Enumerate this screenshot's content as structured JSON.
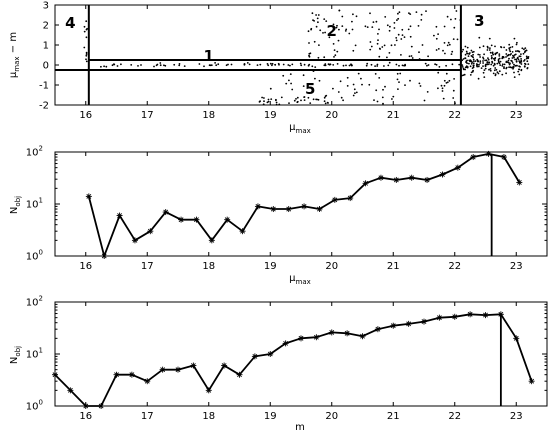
{
  "chart_data": [
    {
      "type": "scatter",
      "xlabel_base": "μ",
      "xlabel_sub": "max",
      "ylabel_parts": [
        {
          "t": "μ"
        },
        {
          "t": "max",
          "sub": true
        },
        {
          "t": " − m"
        }
      ],
      "xlim": [
        15.5,
        23.5
      ],
      "ylim": [
        -2,
        3
      ],
      "xticks": [
        16,
        17,
        18,
        19,
        20,
        21,
        22,
        23
      ],
      "yticks": [
        -2,
        -1,
        0,
        1,
        2,
        3
      ],
      "region_lines": {
        "v_at_x": [
          16.05,
          22.1
        ],
        "h_at_y": [
          0.25,
          -0.25
        ],
        "h_x_range": [
          16.05,
          22.1
        ]
      },
      "region_labels": [
        {
          "text": "1",
          "x": 18.0,
          "y": 0.45
        },
        {
          "text": "2",
          "x": 20.0,
          "y": 1.7
        },
        {
          "text": "3",
          "x": 22.4,
          "y": 2.2
        },
        {
          "text": "4",
          "x": 15.75,
          "y": 2.1
        },
        {
          "text": "5",
          "x": 19.65,
          "y": -1.2
        }
      ]
    },
    {
      "type": "line",
      "xlabel_base": "μ",
      "xlabel_sub": "max",
      "ylabel_base": "N",
      "ylabel_sub": "obj",
      "yscale": "log",
      "xlim": [
        15.5,
        23.5
      ],
      "ylim": [
        1,
        100
      ],
      "xticks": [
        16,
        17,
        18,
        19,
        20,
        21,
        22,
        23
      ],
      "yticks": [
        {
          "base": "10",
          "exp": "0",
          "value": 1
        },
        {
          "base": "10",
          "exp": "1",
          "value": 10
        },
        {
          "base": "10",
          "exp": "2",
          "value": 100
        }
      ],
      "x": [
        16.05,
        16.3,
        16.55,
        16.8,
        17.05,
        17.3,
        17.55,
        17.8,
        18.05,
        18.3,
        18.55,
        18.8,
        19.05,
        19.3,
        19.55,
        19.8,
        20.05,
        20.3,
        20.55,
        20.8,
        21.05,
        21.3,
        21.55,
        21.8,
        22.05,
        22.3,
        22.55,
        22.8,
        23.05
      ],
      "y": [
        14,
        1,
        6,
        2,
        3,
        7,
        5,
        5,
        2,
        5,
        3,
        9,
        8,
        8,
        9,
        8,
        12,
        13,
        25,
        32,
        29,
        32,
        29,
        37,
        50,
        80,
        92,
        80,
        26
      ],
      "cutoff_x": 22.6
    },
    {
      "type": "line",
      "xlabel": "m",
      "ylabel_base": "N",
      "ylabel_sub": "obj",
      "yscale": "log",
      "xlim": [
        15.5,
        23.5
      ],
      "ylim": [
        1,
        100
      ],
      "xticks": [
        16,
        17,
        18,
        19,
        20,
        21,
        22,
        23
      ],
      "yticks": [
        {
          "base": "10",
          "exp": "0",
          "value": 1
        },
        {
          "base": "10",
          "exp": "1",
          "value": 10
        },
        {
          "base": "10",
          "exp": "2",
          "value": 100
        }
      ],
      "x": [
        15.5,
        15.75,
        16.0,
        16.25,
        16.5,
        16.75,
        17.0,
        17.25,
        17.5,
        17.75,
        18.0,
        18.25,
        18.5,
        18.75,
        19.0,
        19.25,
        19.5,
        19.75,
        20.0,
        20.25,
        20.5,
        20.75,
        21.0,
        21.25,
        21.5,
        21.75,
        22.0,
        22.25,
        22.5,
        22.75,
        23.0,
        23.25
      ],
      "y": [
        4,
        2,
        1,
        1,
        4,
        4,
        3,
        5,
        5,
        6,
        2,
        6,
        4,
        9,
        10,
        16,
        20,
        21,
        26,
        25,
        22,
        30,
        35,
        38,
        42,
        50,
        52,
        58,
        56,
        58,
        20,
        3
      ],
      "cutoff_x": 22.75
    }
  ]
}
